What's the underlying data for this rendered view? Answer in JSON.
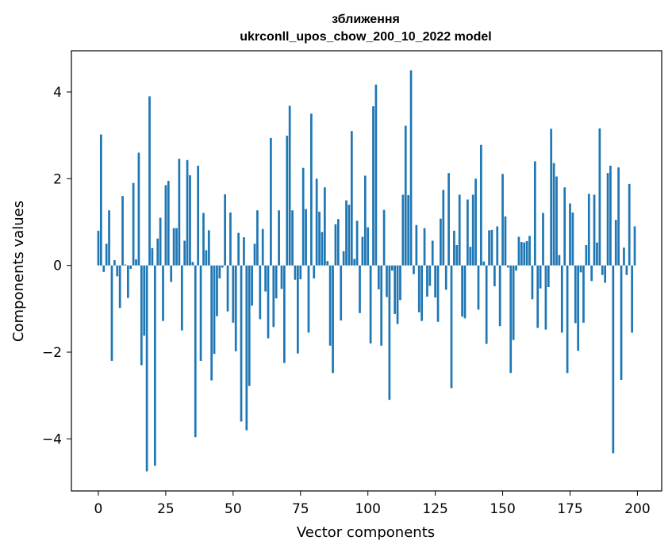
{
  "chart_data": {
    "type": "bar",
    "title": "зближення",
    "subtitle": "ukrconll_upos_cbow_200_10_2022 model",
    "xlabel": "Vector components",
    "ylabel": "Components values",
    "xlim": [
      -10,
      209
    ],
    "ylim": [
      -5.2,
      4.95
    ],
    "xticks": [
      0,
      25,
      50,
      75,
      100,
      125,
      150,
      175,
      200
    ],
    "xtick_labels": [
      "0",
      "25",
      "50",
      "75",
      "100",
      "125",
      "150",
      "175",
      "200"
    ],
    "yticks": [
      -4,
      -2,
      0,
      2,
      4
    ],
    "ytick_labels": [
      "−4",
      "−2",
      "0",
      "2",
      "4"
    ],
    "grid": false,
    "bar_color": "#1f77b4",
    "x": [
      0,
      1,
      2,
      3,
      4,
      5,
      6,
      7,
      8,
      9,
      10,
      11,
      12,
      13,
      14,
      15,
      16,
      17,
      18,
      19,
      20,
      21,
      22,
      23,
      24,
      25,
      26,
      27,
      28,
      29,
      30,
      31,
      32,
      33,
      34,
      35,
      36,
      37,
      38,
      39,
      40,
      41,
      42,
      43,
      44,
      45,
      46,
      47,
      48,
      49,
      50,
      51,
      52,
      53,
      54,
      55,
      56,
      57,
      58,
      59,
      60,
      61,
      62,
      63,
      64,
      65,
      66,
      67,
      68,
      69,
      70,
      71,
      72,
      73,
      74,
      75,
      76,
      77,
      78,
      79,
      80,
      81,
      82,
      83,
      84,
      85,
      86,
      87,
      88,
      89,
      90,
      91,
      92,
      93,
      94,
      95,
      96,
      97,
      98,
      99,
      100,
      101,
      102,
      103,
      104,
      105,
      106,
      107,
      108,
      109,
      110,
      111,
      112,
      113,
      114,
      115,
      116,
      117,
      118,
      119,
      120,
      121,
      122,
      123,
      124,
      125,
      126,
      127,
      128,
      129,
      130,
      131,
      132,
      133,
      134,
      135,
      136,
      137,
      138,
      139,
      140,
      141,
      142,
      143,
      144,
      145,
      146,
      147,
      148,
      149,
      150,
      151,
      152,
      153,
      154,
      155,
      156,
      157,
      158,
      159,
      160,
      161,
      162,
      163,
      164,
      165,
      166,
      167,
      168,
      169,
      170,
      171,
      172,
      173,
      174,
      175,
      176,
      177,
      178,
      179,
      180,
      181,
      182,
      183,
      184,
      185,
      186,
      187,
      188,
      189,
      190,
      191,
      192,
      193,
      194,
      195,
      196,
      197,
      198,
      199
    ],
    "values": [
      0.8,
      3.02,
      -0.15,
      0.5,
      1.27,
      -2.2,
      0.12,
      -0.25,
      -0.98,
      1.6,
      0.02,
      -0.75,
      -0.08,
      1.9,
      0.14,
      2.6,
      -2.3,
      -1.62,
      -4.75,
      3.9,
      0.4,
      -4.62,
      0.62,
      1.1,
      -1.28,
      1.85,
      1.95,
      -0.38,
      0.86,
      0.86,
      2.46,
      -1.5,
      0.57,
      2.43,
      2.08,
      0.08,
      -3.96,
      2.3,
      -2.2,
      1.21,
      0.35,
      0.81,
      -2.65,
      -2.04,
      -1.17,
      -0.3,
      -0.05,
      1.64,
      -1.06,
      1.22,
      -1.32,
      -1.98,
      0.75,
      -3.6,
      0.65,
      -3.8,
      -2.78,
      -0.93,
      0.5,
      1.27,
      -1.24,
      0.84,
      -0.6,
      -1.68,
      2.94,
      -1.42,
      -0.76,
      1.27,
      -0.54,
      -2.25,
      2.99,
      3.68,
      1.27,
      -0.33,
      -2.03,
      -0.32,
      2.25,
      1.3,
      -1.55,
      3.5,
      -0.3,
      2.0,
      1.24,
      0.77,
      1.8,
      0.1,
      -1.85,
      -2.48,
      0.95,
      1.07,
      -1.27,
      0.33,
      1.5,
      1.4,
      3.1,
      0.15,
      1.03,
      -1.1,
      0.66,
      2.07,
      0.88,
      -1.8,
      3.67,
      4.17,
      -0.55,
      -1.85,
      1.28,
      -0.73,
      -3.1,
      -0.12,
      -1.12,
      -1.35,
      -0.8,
      1.63,
      3.22,
      1.62,
      4.5,
      -0.2,
      0.93,
      -1.08,
      -1.28,
      0.86,
      -0.72,
      -0.47,
      0.57,
      -0.74,
      -1.3,
      1.08,
      1.74,
      -0.56,
      2.13,
      -2.83,
      0.8,
      0.47,
      1.63,
      -1.18,
      -1.22,
      1.52,
      0.43,
      1.63,
      2.0,
      -1.02,
      2.78,
      0.09,
      -1.81,
      0.81,
      0.82,
      -0.48,
      0.9,
      -1.4,
      2.11,
      1.13,
      -0.05,
      -2.48,
      -1.72,
      -0.12,
      0.66,
      0.54,
      0.53,
      0.56,
      0.68,
      -0.78,
      2.4,
      -1.44,
      -0.53,
      1.21,
      -1.48,
      -0.5,
      3.15,
      2.36,
      2.05,
      0.24,
      -1.55,
      1.8,
      -2.48,
      1.43,
      1.22,
      -1.33,
      -1.97,
      -0.16,
      -1.32,
      0.47,
      1.65,
      -0.36,
      1.63,
      0.53,
      3.16,
      -0.22,
      -0.4,
      2.13,
      2.3,
      -4.33,
      1.05,
      2.26,
      -2.64,
      0.41,
      -0.22,
      1.88,
      -1.55,
      0.9
    ]
  }
}
